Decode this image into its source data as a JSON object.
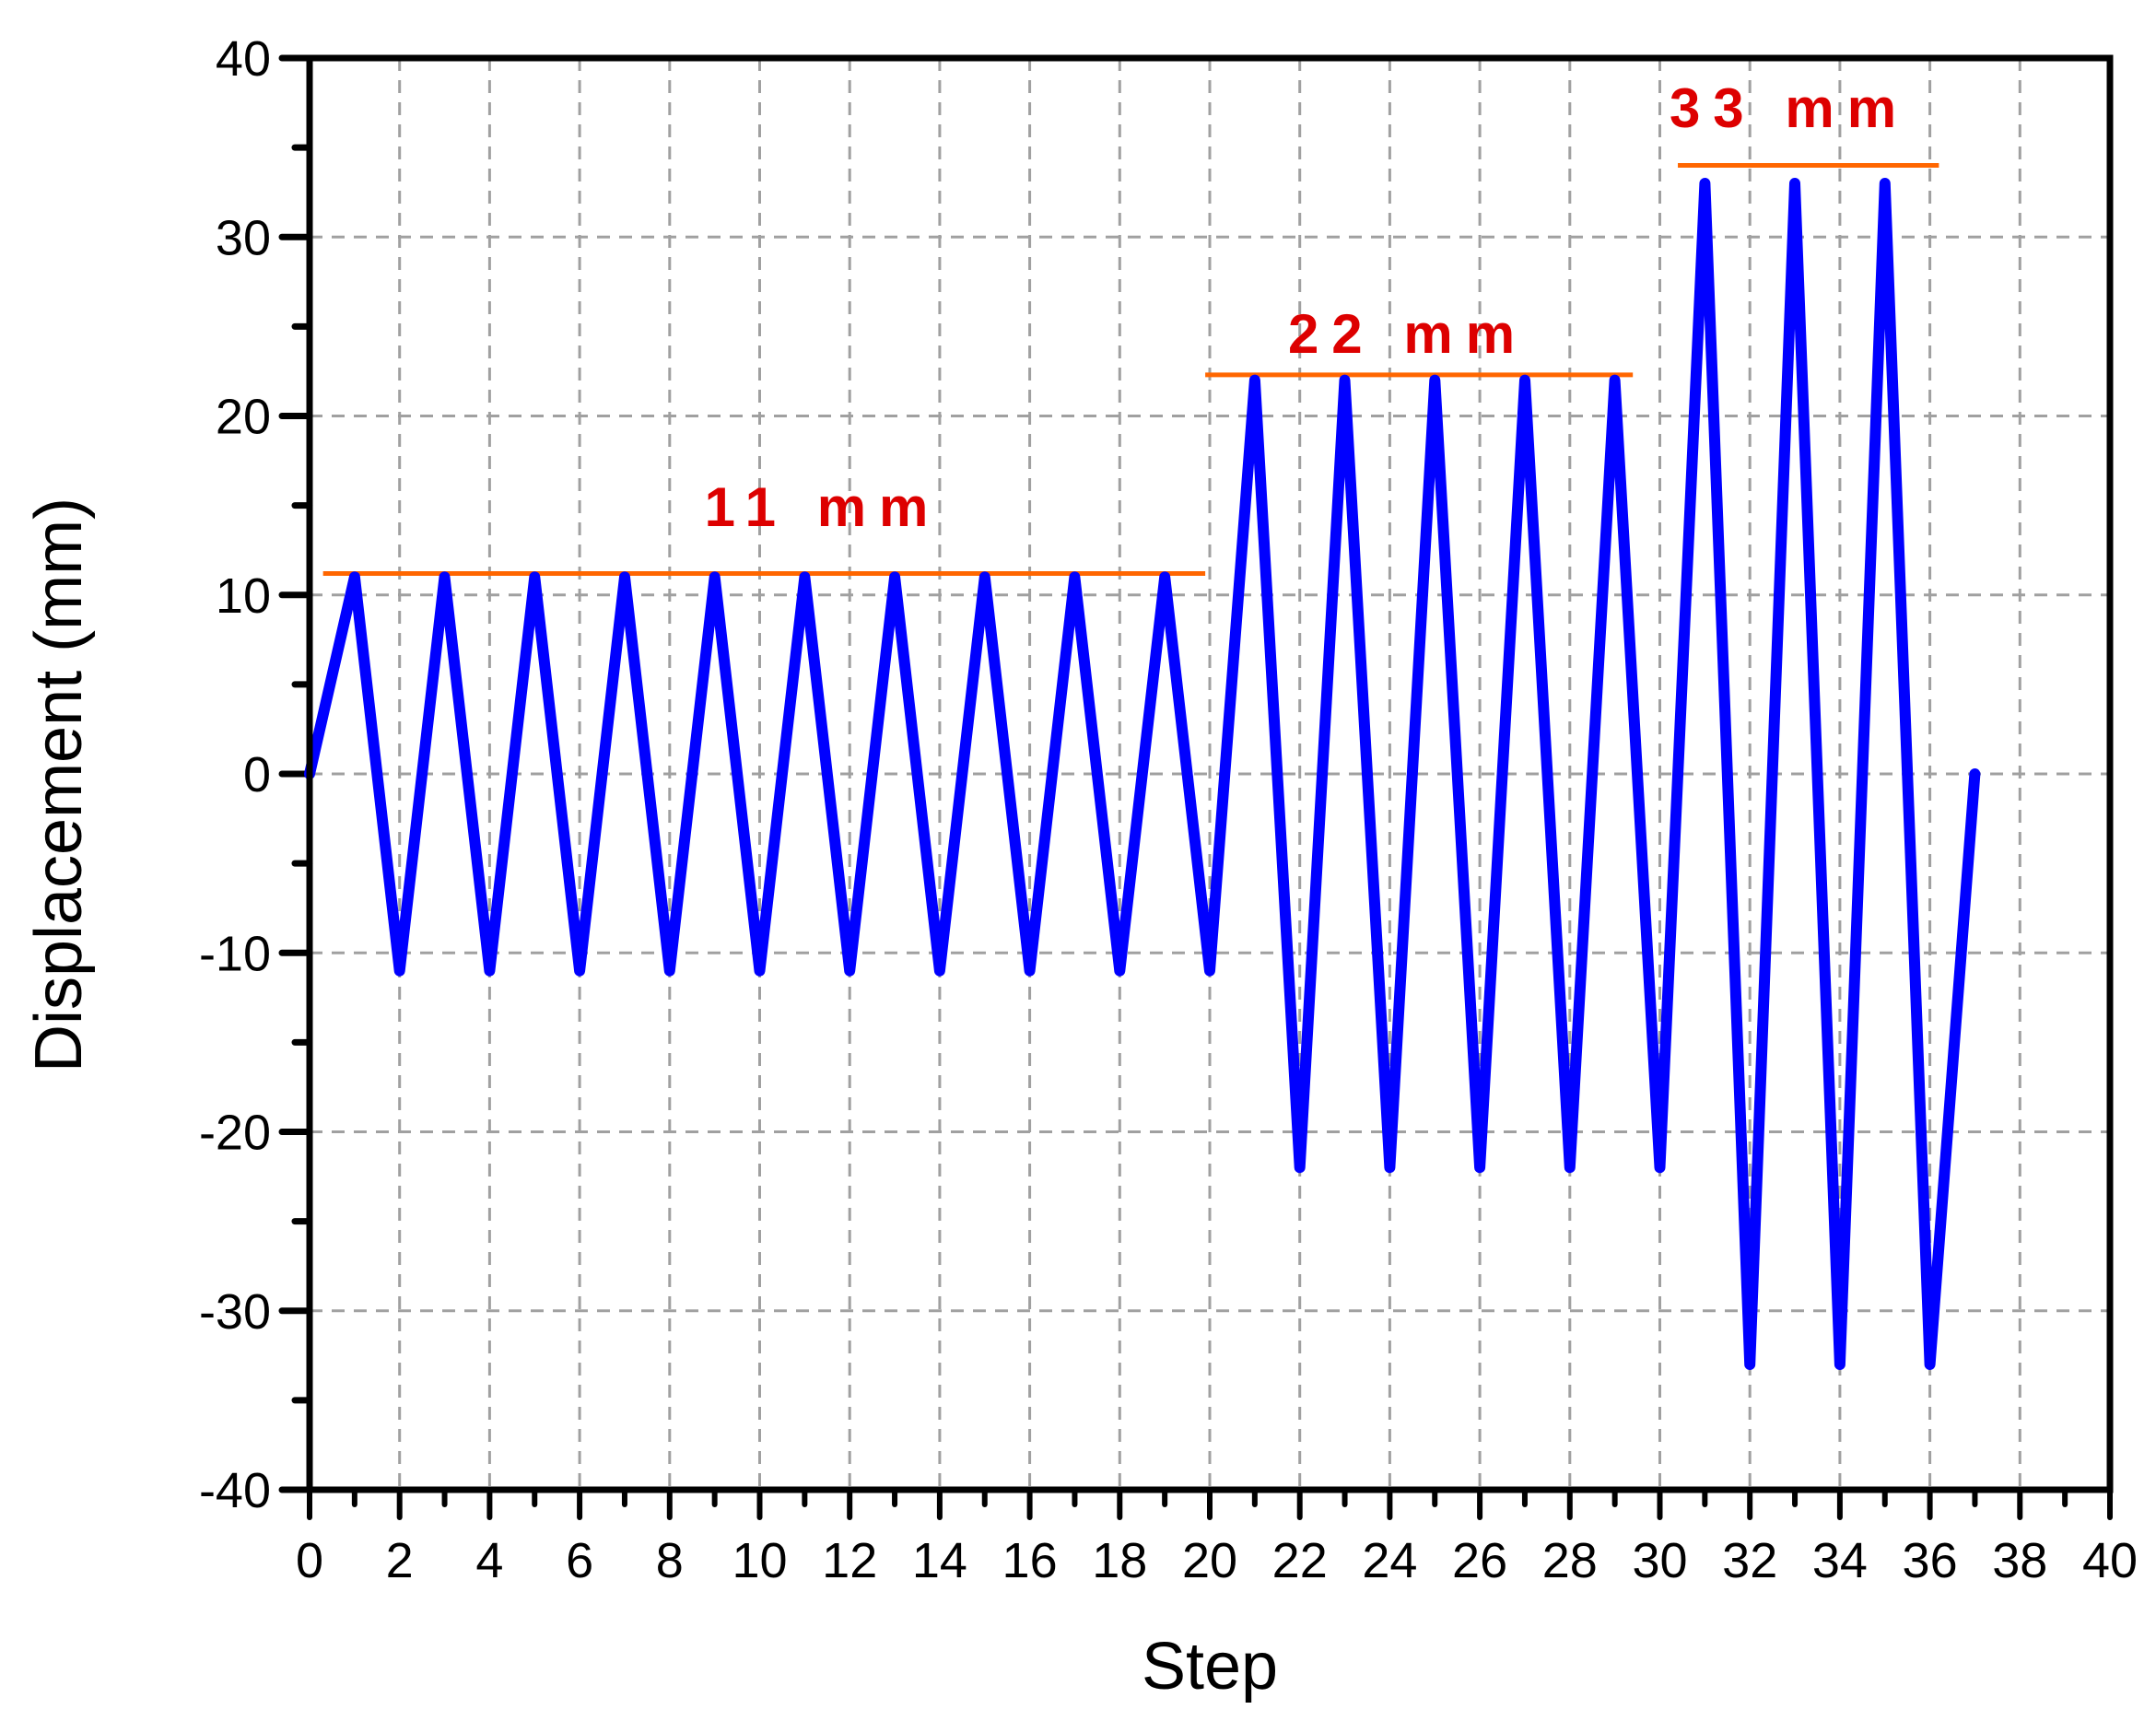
{
  "chart_data": {
    "type": "line",
    "title": "",
    "xlabel": "Step",
    "ylabel": "Displacement (mm)",
    "xlim": [
      0,
      40
    ],
    "ylim": [
      -40,
      40
    ],
    "x_ticks": [
      0,
      2,
      4,
      6,
      8,
      10,
      12,
      14,
      16,
      18,
      20,
      22,
      24,
      26,
      28,
      30,
      32,
      34,
      36,
      38,
      40
    ],
    "y_ticks": [
      -40,
      -30,
      -20,
      -10,
      0,
      10,
      20,
      30,
      40
    ],
    "x_minor_step": 1,
    "y_minor_step": 5,
    "grid": true,
    "legend": null,
    "series": [
      {
        "name": "Displacement",
        "color": "#0000ff",
        "x": [
          0,
          1,
          2,
          3,
          4,
          5,
          6,
          7,
          8,
          9,
          10,
          11,
          12,
          13,
          14,
          15,
          16,
          17,
          18,
          19,
          20,
          21,
          22,
          23,
          24,
          25,
          26,
          27,
          28,
          29,
          30,
          31,
          32,
          33,
          34,
          35,
          36,
          37
        ],
        "values": [
          0,
          11,
          -11,
          11,
          -11,
          11,
          -11,
          11,
          -11,
          11,
          -11,
          11,
          -11,
          11,
          -11,
          11,
          -11,
          11,
          -11,
          11,
          -11,
          22,
          -22,
          22,
          -22,
          22,
          -22,
          22,
          -22,
          22,
          -22,
          33,
          -33,
          33,
          -33,
          33,
          -33,
          0
        ]
      }
    ],
    "annotations": [
      {
        "text": "11 mm",
        "line_y": 11.2,
        "line_x": [
          0.3,
          19.9
        ],
        "text_x": 9.8,
        "text_y": 15.5,
        "line_color": "#ff6600",
        "text_color": "#dd0000"
      },
      {
        "text": "22 mm",
        "line_y": 22.3,
        "line_x": [
          19.9,
          29.4
        ],
        "text_x": 24.9,
        "text_y": 26.6,
        "line_color": "#ff6600",
        "text_color": "#dd0000"
      },
      {
        "text": "33 mm",
        "line_y": 34.0,
        "line_x": [
          30.4,
          36.2
        ],
        "text_x": 33.3,
        "text_y": 37.5,
        "line_color": "#ff6600",
        "text_color": "#dd0000"
      }
    ]
  },
  "labels": {
    "xlabel": "Step",
    "ylabel": "Displacement (mm)",
    "annot_11": "11 mm",
    "annot_22": "22 mm",
    "annot_33": "33 mm"
  },
  "colors": {
    "line": "#0000ff",
    "marker_line": "#ff6600",
    "annotation_text": "#dd0000",
    "grid": "#a0a0a0",
    "axis": "#000000"
  }
}
